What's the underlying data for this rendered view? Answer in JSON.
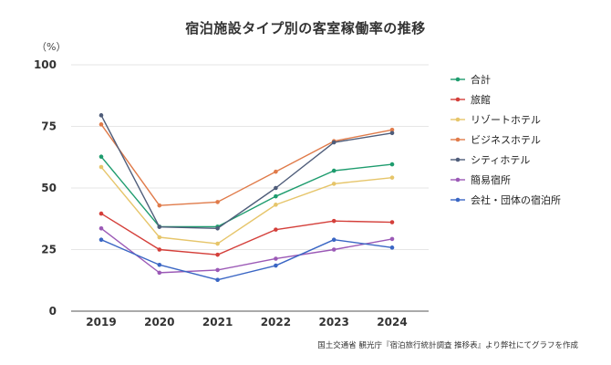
{
  "chart_data": {
    "type": "line",
    "title": "宿泊施設タイプ別の客室稼働率の推移",
    "ylabel": "（%）",
    "x": [
      "2019",
      "2020",
      "2021",
      "2022",
      "2023",
      "2024"
    ],
    "yticks": [
      0,
      25,
      50,
      75,
      100
    ],
    "ylim": [
      0,
      100
    ],
    "grid": true,
    "legend_position": "right",
    "series": [
      {
        "name": "合計",
        "color": "#1e9c6e",
        "values": [
          62.7,
          34.3,
          34.3,
          46.6,
          57.0,
          59.6
        ]
      },
      {
        "name": "旅館",
        "color": "#d43f3a",
        "values": [
          39.6,
          25.0,
          22.9,
          33.1,
          36.6,
          36.1
        ]
      },
      {
        "name": "リゾートホテル",
        "color": "#e6c56a",
        "values": [
          58.5,
          30.0,
          27.4,
          43.2,
          51.7,
          54.2
        ]
      },
      {
        "name": "ビジネスホテル",
        "color": "#e07b4a",
        "values": [
          75.8,
          42.9,
          44.3,
          56.6,
          69.0,
          73.6
        ]
      },
      {
        "name": "シティホテル",
        "color": "#4f5d7a",
        "values": [
          79.5,
          34.2,
          33.6,
          50.0,
          68.5,
          72.3
        ]
      },
      {
        "name": "簡易宿所",
        "color": "#9b59b6",
        "values": [
          33.6,
          15.6,
          16.7,
          21.3,
          25.0,
          29.3
        ]
      },
      {
        "name": "会社・団体の宿泊所",
        "color": "#3a66c4",
        "values": [
          29.0,
          18.8,
          12.7,
          18.5,
          29.0,
          25.8
        ]
      }
    ]
  },
  "source": "国土交通省 観光庁『宿泊旅行統計調査 推移表』より弊社にてグラフを作成"
}
